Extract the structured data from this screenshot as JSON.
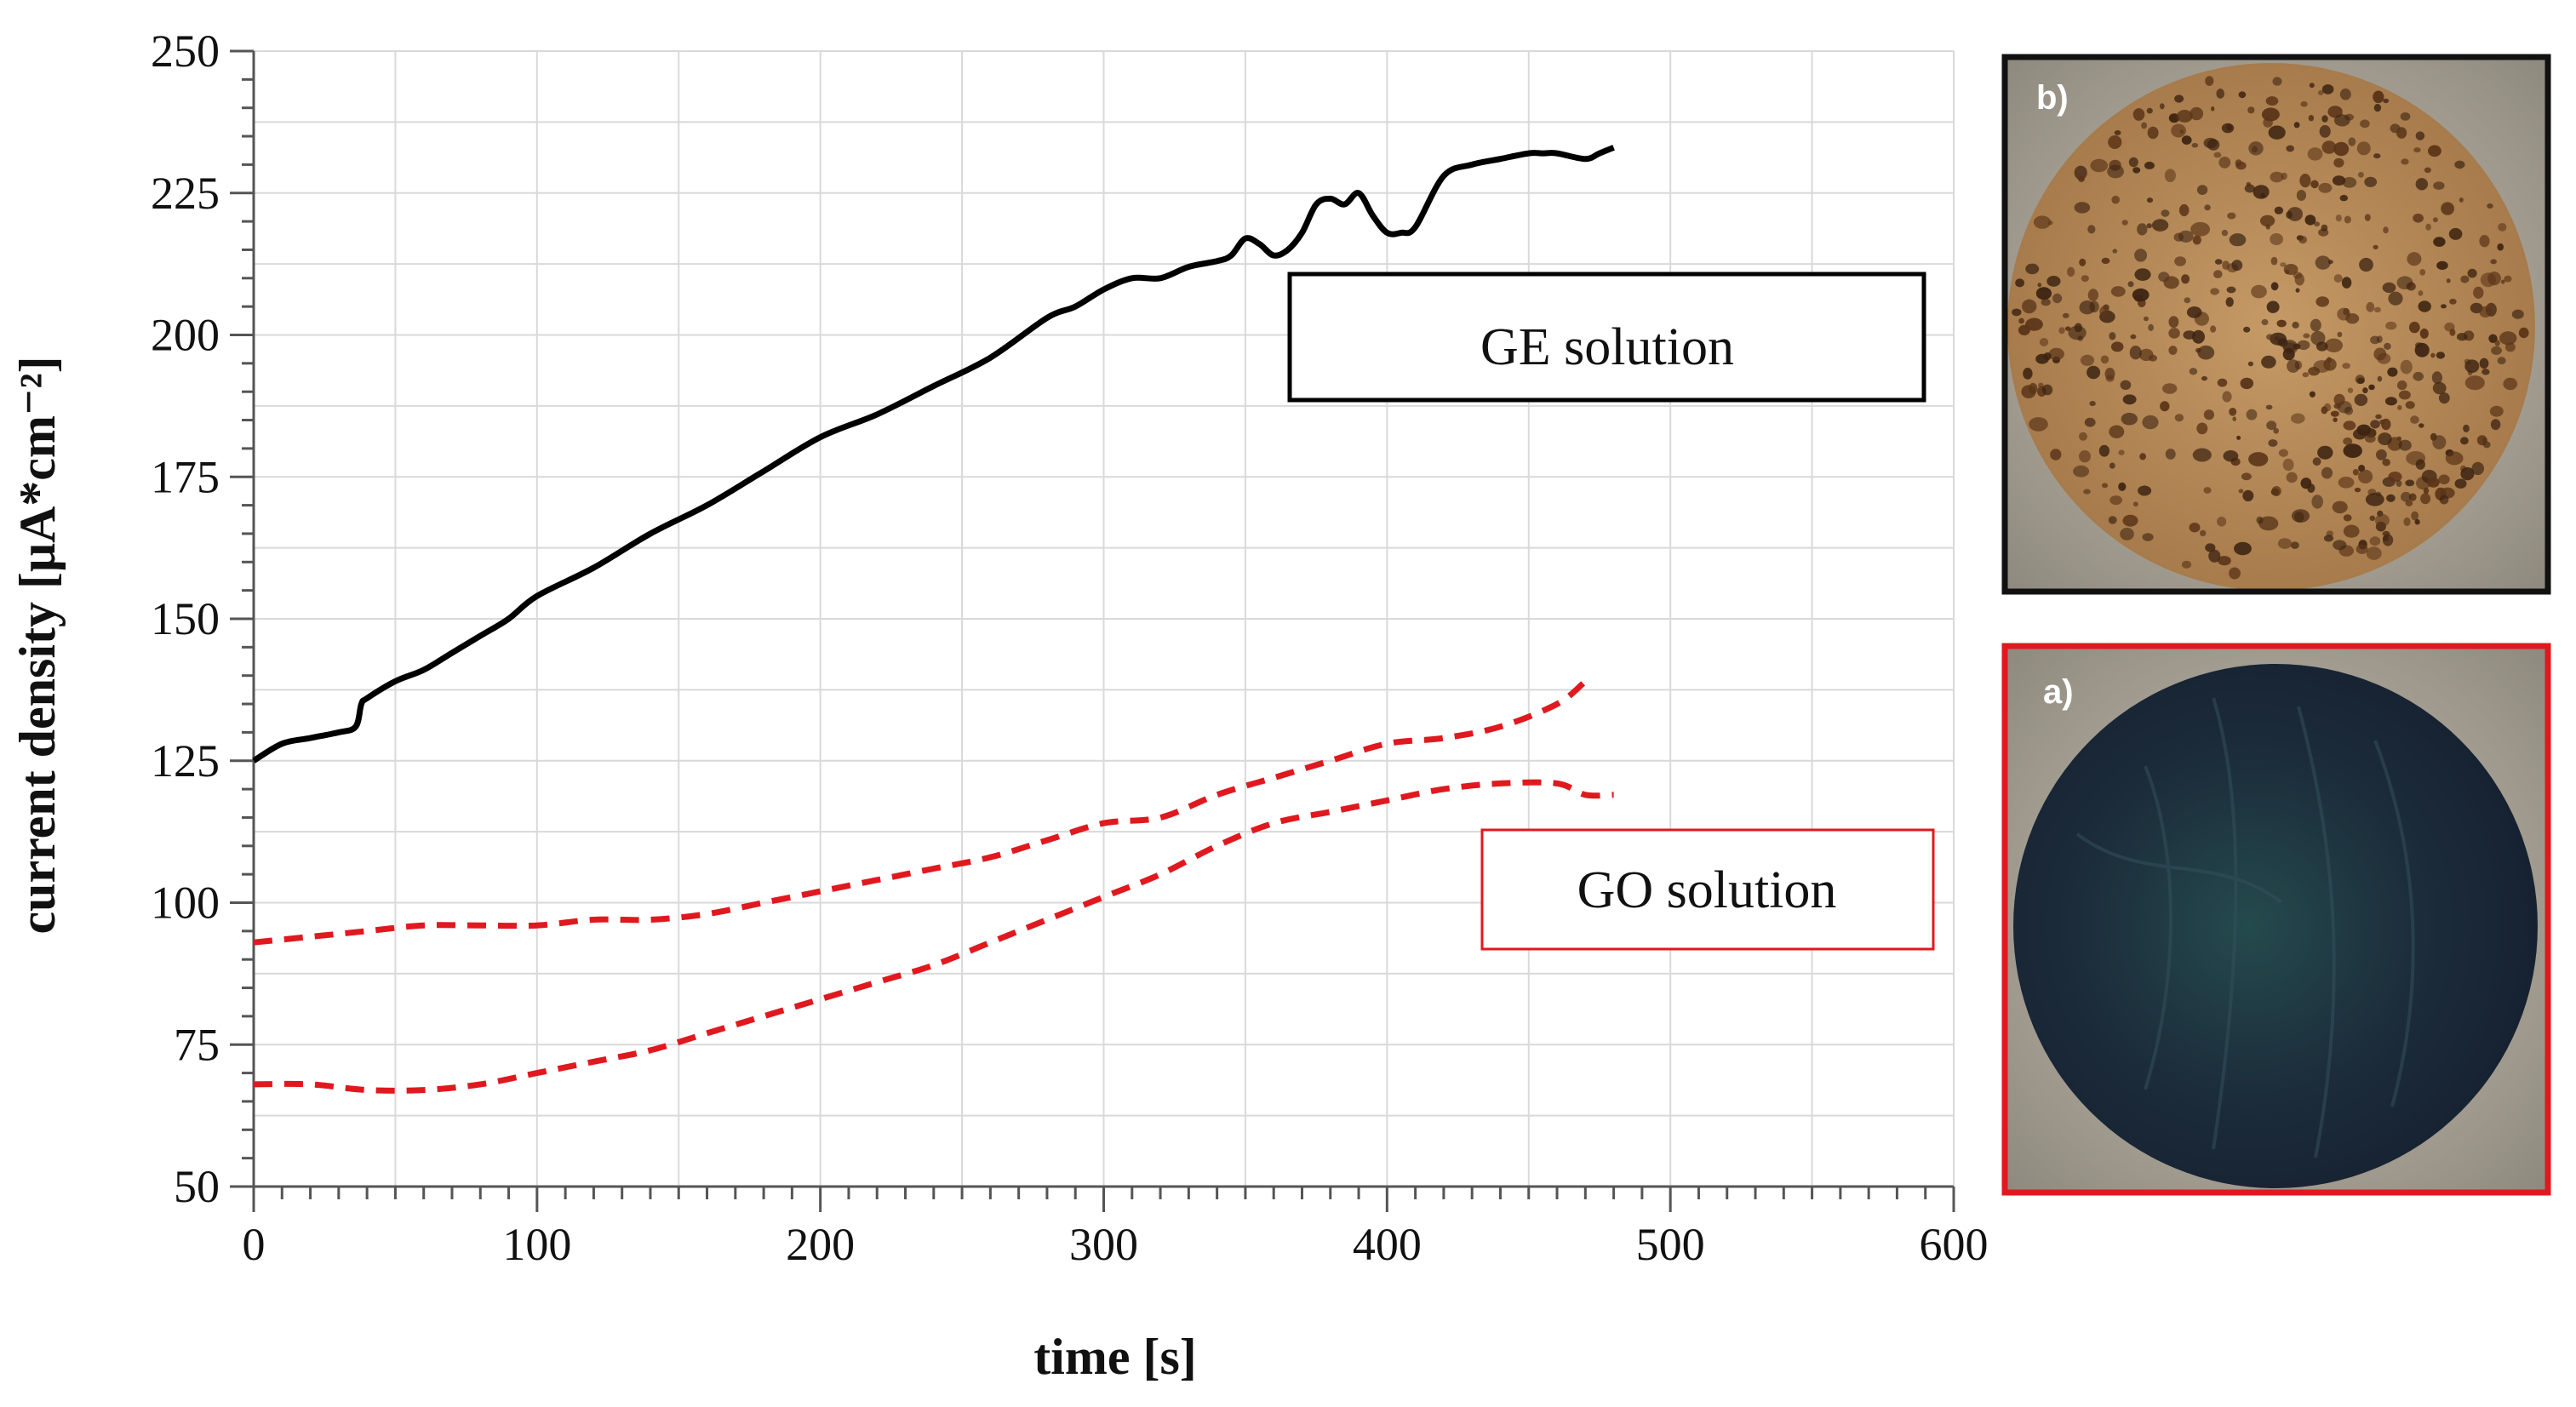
{
  "chart_data": {
    "type": "line",
    "title": "",
    "xlabel": "time [s]",
    "ylabel": "current density [μA*cm⁻²]",
    "xlim": [
      0,
      600
    ],
    "ylim": [
      50,
      250
    ],
    "xticks": [
      0,
      100,
      200,
      300,
      400,
      500,
      600
    ],
    "yticks": [
      50,
      75,
      100,
      125,
      150,
      175,
      200,
      225,
      250
    ],
    "grid": true,
    "series": [
      {
        "name": "GE solution",
        "style": "solid",
        "color": "#000000",
        "x": [
          0,
          10,
          20,
          30,
          36,
          38,
          40,
          50,
          60,
          70,
          80,
          90,
          100,
          120,
          140,
          160,
          180,
          200,
          220,
          240,
          260,
          280,
          290,
          300,
          310,
          320,
          330,
          340,
          345,
          350,
          355,
          360,
          365,
          370,
          375,
          380,
          385,
          390,
          395,
          400,
          405,
          410,
          420,
          430,
          440,
          450,
          455,
          460,
          470,
          475,
          480
        ],
        "y": [
          125,
          128,
          129,
          130,
          131,
          135,
          136,
          139,
          141,
          144,
          147,
          150,
          154,
          159,
          165,
          170,
          176,
          182,
          186,
          191,
          196,
          203,
          205,
          208,
          210,
          210,
          212,
          213,
          214,
          217,
          216,
          214,
          215,
          218,
          223,
          224,
          223,
          225,
          221,
          218,
          218,
          219,
          228,
          230,
          231,
          232,
          232,
          232,
          231,
          232,
          233
        ]
      },
      {
        "name": "GO solution",
        "style": "dashed",
        "color": "#e0191f",
        "x": [
          0,
          20,
          40,
          60,
          80,
          100,
          120,
          140,
          160,
          180,
          200,
          220,
          240,
          260,
          280,
          300,
          320,
          340,
          360,
          380,
          400,
          420,
          440,
          460,
          470
        ],
        "y": [
          93,
          94,
          95,
          96,
          96,
          96,
          97,
          97,
          98,
          100,
          102,
          104,
          106,
          108,
          111,
          114,
          115,
          119,
          122,
          125,
          128,
          129,
          131,
          135,
          139
        ]
      },
      {
        "name": "GO solution",
        "style": "dashed",
        "color": "#e0191f",
        "x": [
          0,
          20,
          40,
          60,
          80,
          100,
          120,
          140,
          160,
          180,
          200,
          220,
          240,
          260,
          280,
          300,
          320,
          340,
          360,
          380,
          400,
          420,
          440,
          460,
          470,
          480
        ],
        "y": [
          68,
          68,
          67,
          67,
          68,
          70,
          72,
          74,
          77,
          80,
          83,
          86,
          89,
          93,
          97,
          101,
          105,
          110,
          114,
          116,
          118,
          120,
          121,
          121,
          119,
          119
        ]
      }
    ],
    "annotations": [
      {
        "text": "GE solution",
        "color": "#000000"
      },
      {
        "text": "GO solution",
        "color": "#e0191f"
      }
    ]
  },
  "photos": [
    {
      "label": "b)",
      "description_name": "corroded-sample-photo",
      "frame_color": "#111111"
    },
    {
      "label": "a)",
      "description_name": "coated-sample-photo",
      "frame_color": "#e0191f"
    }
  ],
  "colors": {
    "grid": "#d9d9d9",
    "axis": "#555555",
    "ge": "#000000",
    "go": "#e0191f"
  }
}
